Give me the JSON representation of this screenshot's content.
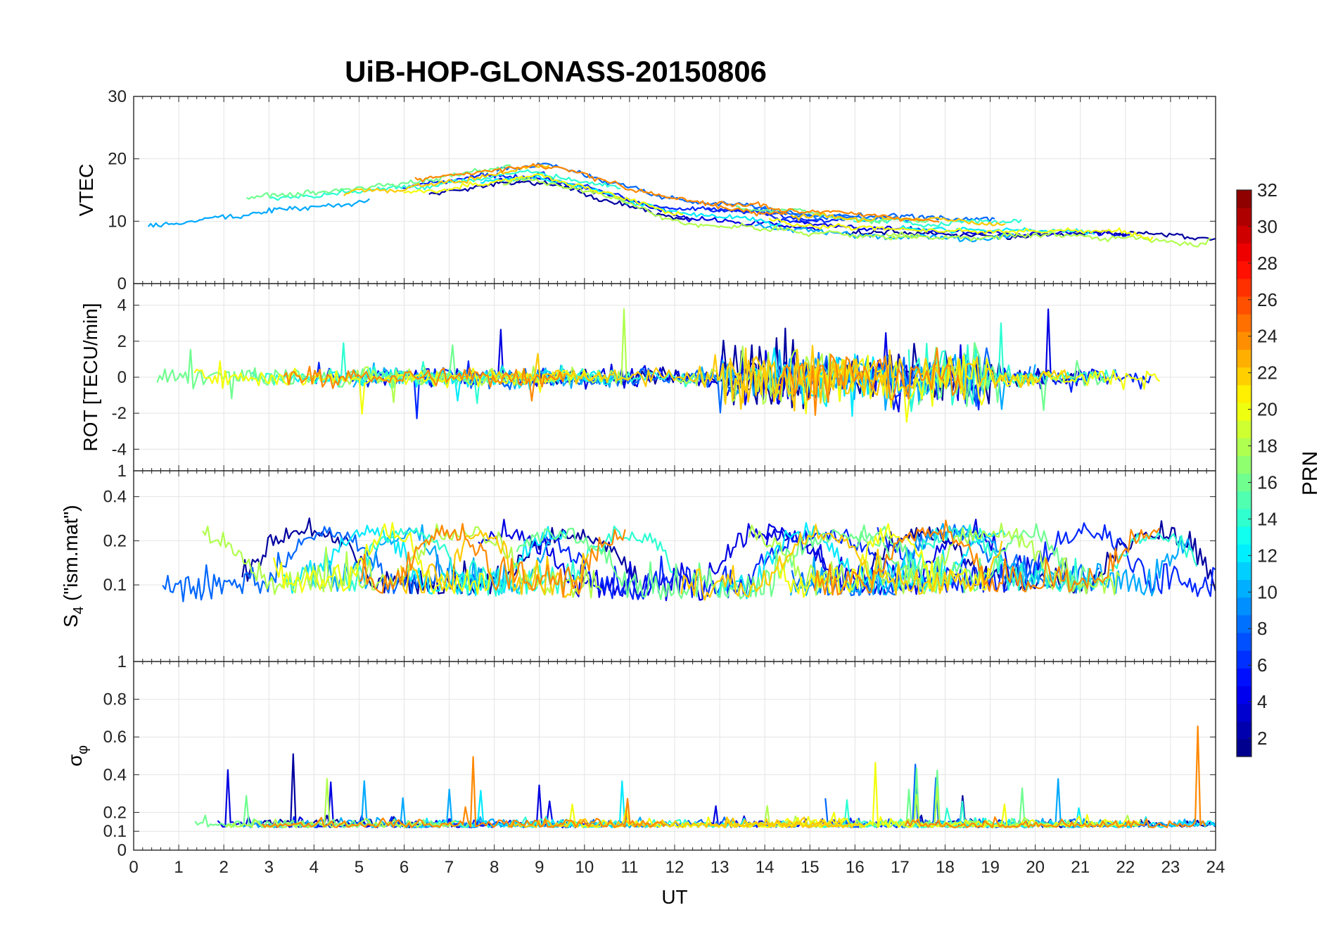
{
  "chart_data": {
    "type": "line",
    "title": "UiB-HOP-GLONASS-20150806",
    "xlabel": "UT",
    "xlim": [
      0,
      24
    ],
    "x_ticks": [
      "0",
      "1",
      "2",
      "3",
      "4",
      "5",
      "6",
      "7",
      "8",
      "9",
      "10",
      "11",
      "12",
      "13",
      "14",
      "15",
      "16",
      "17",
      "18",
      "19",
      "20",
      "21",
      "22",
      "23",
      "24"
    ],
    "grid": true,
    "colormap": "jet",
    "colorbar": {
      "label": "PRN",
      "range": [
        1,
        32
      ],
      "placement": "right",
      "ticks": [
        "2",
        "4",
        "6",
        "8",
        "10",
        "12",
        "14",
        "16",
        "18",
        "20",
        "22",
        "24",
        "26",
        "28",
        "30",
        "32"
      ]
    },
    "panels": [
      {
        "id": "vtec",
        "ylabel": "VTEC",
        "ylim": [
          0,
          30
        ],
        "y_ticks": [
          "0",
          "10",
          "20",
          "30"
        ],
        "typical_values": {
          "hours": [
            0,
            3,
            6,
            9,
            12,
            15,
            18,
            21,
            24
          ],
          "values": [
            10,
            13,
            15,
            18,
            12,
            10,
            9,
            9,
            8
          ]
        }
      },
      {
        "id": "rot",
        "ylabel": "ROT [TECU/min]",
        "ylim": [
          -5.2,
          5.2
        ],
        "y_ticks": [
          "-4",
          "-2",
          "0",
          "2",
          "4"
        ],
        "typical_values": {
          "hours": [
            0,
            6,
            12,
            14,
            18,
            24
          ],
          "values": [
            0,
            0,
            0,
            0,
            0,
            0
          ]
        }
      },
      {
        "id": "s4",
        "ylabel": "S4 (\"ism.mat\")",
        "ylabel_main": "S",
        "ylabel_sub": "4",
        "ylabel_rest": " (\"ism.mat\")",
        "ylim": [
          0.03,
          0.6
        ],
        "scale": "log",
        "y_ticks": [
          "0.1",
          "0.2",
          "0.4"
        ],
        "y_top_label": "1",
        "typical_values": {
          "hours": [
            0,
            4,
            8,
            12,
            16,
            20,
            24
          ],
          "values": [
            0.12,
            0.15,
            0.14,
            0.13,
            0.14,
            0.15,
            0.13
          ]
        }
      },
      {
        "id": "sigma_phi",
        "ylabel": "σφ",
        "ylabel_main": "σ",
        "ylabel_sub": "φ",
        "ylim": [
          0,
          1
        ],
        "y_ticks": [
          "0",
          "0.1",
          "0.2",
          "0.4",
          "0.6",
          "0.8",
          "1"
        ],
        "typical_values": {
          "hours": [
            0,
            4,
            8,
            12,
            16,
            20,
            24
          ],
          "values": [
            0.15,
            0.15,
            0.15,
            0.15,
            0.15,
            0.15,
            0.15
          ]
        }
      }
    ]
  }
}
